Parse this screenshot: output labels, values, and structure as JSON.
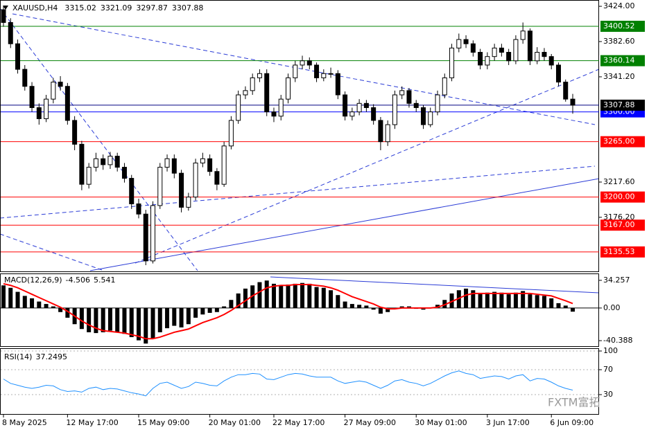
{
  "chart_data": [
    {
      "type": "candlestick",
      "title": "XAUUSD,H4",
      "up_color": "#ffffff",
      "down_color": "#000000",
      "categories": [
        "8 May 2025",
        null,
        null,
        null,
        null,
        null,
        null,
        null,
        null,
        "12 May 17:00",
        null,
        null,
        null,
        null,
        null,
        null,
        null,
        null,
        null,
        "15 May 09:00",
        null,
        null,
        null,
        null,
        null,
        null,
        null,
        null,
        null,
        "20 May 01:00",
        null,
        null,
        null,
        null,
        null,
        null,
        null,
        null,
        "22 May 17:00",
        null,
        null,
        null,
        null,
        null,
        null,
        null,
        null,
        null,
        "27 May 09:00",
        null,
        null,
        null,
        null,
        null,
        null,
        null,
        null,
        null,
        "30 May 01:00",
        null,
        null,
        null,
        null,
        null,
        null,
        null,
        null,
        null,
        "3 Jun 17:00",
        null,
        null,
        null,
        null,
        null,
        null,
        null,
        null,
        "6 Jun 09:00",
        null,
        null,
        null
      ],
      "ohlc": [
        [
          3420,
          3424,
          3400,
          3405
        ],
        [
          3405,
          3410,
          3375,
          3380
        ],
        [
          3380,
          3385,
          3345,
          3350
        ],
        [
          3350,
          3355,
          3325,
          3330
        ],
        [
          3330,
          3335,
          3300,
          3305
        ],
        [
          3305,
          3310,
          3285,
          3292
        ],
        [
          3292,
          3320,
          3288,
          3315
        ],
        [
          3315,
          3340,
          3310,
          3335
        ],
        [
          3335,
          3342,
          3325,
          3330
        ],
        [
          3330,
          3334,
          3285,
          3290
        ],
        [
          3290,
          3295,
          3255,
          3262
        ],
        [
          3262,
          3266,
          3208,
          3215
        ],
        [
          3215,
          3240,
          3210,
          3235
        ],
        [
          3235,
          3252,
          3230,
          3245
        ],
        [
          3245,
          3250,
          3232,
          3238
        ],
        [
          3238,
          3253,
          3233,
          3248
        ],
        [
          3248,
          3252,
          3230,
          3235
        ],
        [
          3235,
          3240,
          3217,
          3222
        ],
        [
          3222,
          3226,
          3186,
          3192
        ],
        [
          3192,
          3198,
          3175,
          3180
        ],
        [
          3180,
          3185,
          3120,
          3125
        ],
        [
          3125,
          3195,
          3122,
          3190
        ],
        [
          3190,
          3240,
          3186,
          3235
        ],
        [
          3235,
          3250,
          3230,
          3245
        ],
        [
          3245,
          3250,
          3222,
          3228
        ],
        [
          3228,
          3232,
          3182,
          3188
        ],
        [
          3188,
          3205,
          3184,
          3200
        ],
        [
          3200,
          3245,
          3196,
          3240
        ],
        [
          3240,
          3252,
          3235,
          3245
        ],
        [
          3245,
          3250,
          3225,
          3230
        ],
        [
          3230,
          3234,
          3208,
          3215
        ],
        [
          3215,
          3265,
          3212,
          3260
        ],
        [
          3260,
          3295,
          3256,
          3290
        ],
        [
          3290,
          3325,
          3286,
          3320
        ],
        [
          3320,
          3330,
          3315,
          3325
        ],
        [
          3325,
          3345,
          3320,
          3340
        ],
        [
          3340,
          3350,
          3335,
          3345
        ],
        [
          3345,
          3350,
          3295,
          3300
        ],
        [
          3300,
          3305,
          3288,
          3295
        ],
        [
          3295,
          3320,
          3290,
          3315
        ],
        [
          3315,
          3345,
          3310,
          3340
        ],
        [
          3340,
          3360,
          3335,
          3355
        ],
        [
          3355,
          3366,
          3350,
          3360
        ],
        [
          3360,
          3364,
          3350,
          3355
        ],
        [
          3355,
          3358,
          3335,
          3340
        ],
        [
          3340,
          3350,
          3336,
          3345
        ],
        [
          3345,
          3352,
          3340,
          3345
        ],
        [
          3345,
          3349,
          3315,
          3320
        ],
        [
          3320,
          3324,
          3290,
          3295
        ],
        [
          3295,
          3305,
          3290,
          3300
        ],
        [
          3300,
          3315,
          3296,
          3310
        ],
        [
          3310,
          3314,
          3300,
          3305
        ],
        [
          3305,
          3309,
          3285,
          3290
        ],
        [
          3290,
          3294,
          3255,
          3265
        ],
        [
          3265,
          3290,
          3260,
          3285
        ],
        [
          3285,
          3325,
          3280,
          3320
        ],
        [
          3320,
          3330,
          3315,
          3325
        ],
        [
          3325,
          3328,
          3305,
          3310
        ],
        [
          3310,
          3314,
          3300,
          3305
        ],
        [
          3305,
          3308,
          3280,
          3285
        ],
        [
          3285,
          3305,
          3282,
          3300
        ],
        [
          3300,
          3325,
          3296,
          3320
        ],
        [
          3320,
          3345,
          3316,
          3340
        ],
        [
          3340,
          3380,
          3336,
          3375
        ],
        [
          3375,
          3392,
          3370,
          3385
        ],
        [
          3385,
          3390,
          3375,
          3380
        ],
        [
          3380,
          3384,
          3365,
          3370
        ],
        [
          3370,
          3374,
          3350,
          3355
        ],
        [
          3355,
          3370,
          3350,
          3365
        ],
        [
          3365,
          3380,
          3360,
          3375
        ],
        [
          3375,
          3380,
          3365,
          3370
        ],
        [
          3370,
          3374,
          3355,
          3360
        ],
        [
          3360,
          3390,
          3356,
          3385
        ],
        [
          3385,
          3405,
          3380,
          3395
        ],
        [
          3395,
          3398,
          3355,
          3360
        ],
        [
          3360,
          3376,
          3356,
          3370
        ],
        [
          3370,
          3375,
          3360,
          3365
        ],
        [
          3365,
          3368,
          3350,
          3355
        ],
        [
          3355,
          3358,
          3330,
          3335
        ],
        [
          3335,
          3338,
          3312,
          3315.02
        ],
        [
          3315.02,
          3321.09,
          3297.87,
          3307.88
        ]
      ],
      "ylim": [
        3112.7,
        3431.4
      ],
      "yticks": [
        {
          "value": 3424,
          "label": "3424.00"
        },
        {
          "value": 3382.6,
          "label": "3382.60"
        },
        {
          "value": 3341.2,
          "label": "3341.20"
        },
        {
          "value": 3217.6,
          "label": "3217.60"
        },
        {
          "value": 3176.2,
          "label": "3176.20"
        }
      ],
      "levels": [
        {
          "value": 3400.52,
          "color": "#008000"
        },
        {
          "value": 3360.14,
          "color": "#008000"
        },
        {
          "value": 3300,
          "label": "3300.00",
          "color": "#0000ff"
        },
        {
          "value": 3265,
          "label": "3265.00",
          "color": "#ff0000"
        },
        {
          "value": 3200,
          "label": "3200.00",
          "color": "#ff0000"
        },
        {
          "value": 3167,
          "label": "3167.00",
          "color": "#ff0000"
        },
        {
          "value": 3135.53,
          "color": "#ff0000"
        }
      ],
      "grid": false
    },
    {
      "type": "macd",
      "title": "MACD(12,26,9)",
      "color": "#000000",
      "signal_color": "#ff0000",
      "histogram": [
        28,
        25,
        20,
        15,
        12,
        8,
        5,
        2,
        -5,
        -12,
        -20,
        -26,
        -30,
        -31,
        -30,
        -28,
        -30,
        -32,
        -36,
        -40,
        -44,
        -38,
        -30,
        -25,
        -22,
        -24,
        -20,
        -12,
        -8,
        -6,
        -5,
        2,
        10,
        18,
        24,
        28,
        32,
        34,
        30,
        28,
        29,
        30,
        31,
        30,
        26,
        25,
        22,
        16,
        8,
        5,
        4,
        3,
        -2,
        -7,
        -5,
        0,
        2,
        2,
        -1,
        -2,
        0,
        4,
        10,
        18,
        22,
        24,
        22,
        18,
        19,
        20,
        19,
        17,
        19,
        21,
        17,
        16,
        15,
        12,
        6,
        3,
        -4.506
      ],
      "signal": [
        30,
        28,
        25,
        21,
        17,
        13,
        9,
        5,
        1,
        -4,
        -10,
        -16,
        -21,
        -25,
        -28,
        -29,
        -30,
        -31,
        -33,
        -35,
        -38,
        -38,
        -36,
        -33,
        -30,
        -28,
        -26,
        -22,
        -18,
        -15,
        -12,
        -8,
        -3,
        3,
        9,
        15,
        20,
        25,
        27,
        28,
        28,
        29,
        29,
        29,
        28,
        27,
        25,
        22,
        18,
        14,
        11,
        8,
        5,
        1,
        -1,
        -1,
        0,
        0,
        0,
        0,
        0,
        1,
        4,
        8,
        12,
        16,
        18,
        18,
        18,
        18,
        18,
        18,
        18,
        18,
        18,
        17,
        16,
        15,
        12,
        9,
        5.541
      ],
      "ylim": [
        -47.2,
        41.9
      ],
      "yticks": [
        34.257,
        {
          "value": 0,
          "label": "0.00"
        },
        -40.388
      ]
    },
    {
      "type": "line",
      "title": "RSI(14)",
      "color": "#1e90ff",
      "values": [
        55,
        48,
        45,
        42,
        40,
        42,
        45,
        44,
        38,
        35,
        36,
        34,
        40,
        42,
        38,
        40,
        39,
        36,
        33,
        31,
        28,
        40,
        48,
        50,
        45,
        40,
        43,
        50,
        48,
        45,
        44,
        52,
        58,
        62,
        62,
        64,
        63,
        55,
        54,
        58,
        62,
        64,
        63,
        60,
        58,
        58,
        58,
        52,
        48,
        50,
        52,
        50,
        45,
        40,
        45,
        52,
        54,
        50,
        48,
        44,
        48,
        54,
        60,
        65,
        68,
        64,
        62,
        56,
        58,
        60,
        59,
        55,
        60,
        62,
        52,
        56,
        55,
        50,
        44,
        40,
        37.2495
      ],
      "ylim": [
        0,
        100
      ],
      "yticks": [
        100,
        70,
        30
      ]
    }
  ],
  "watermark": "FXTM富拓"
}
